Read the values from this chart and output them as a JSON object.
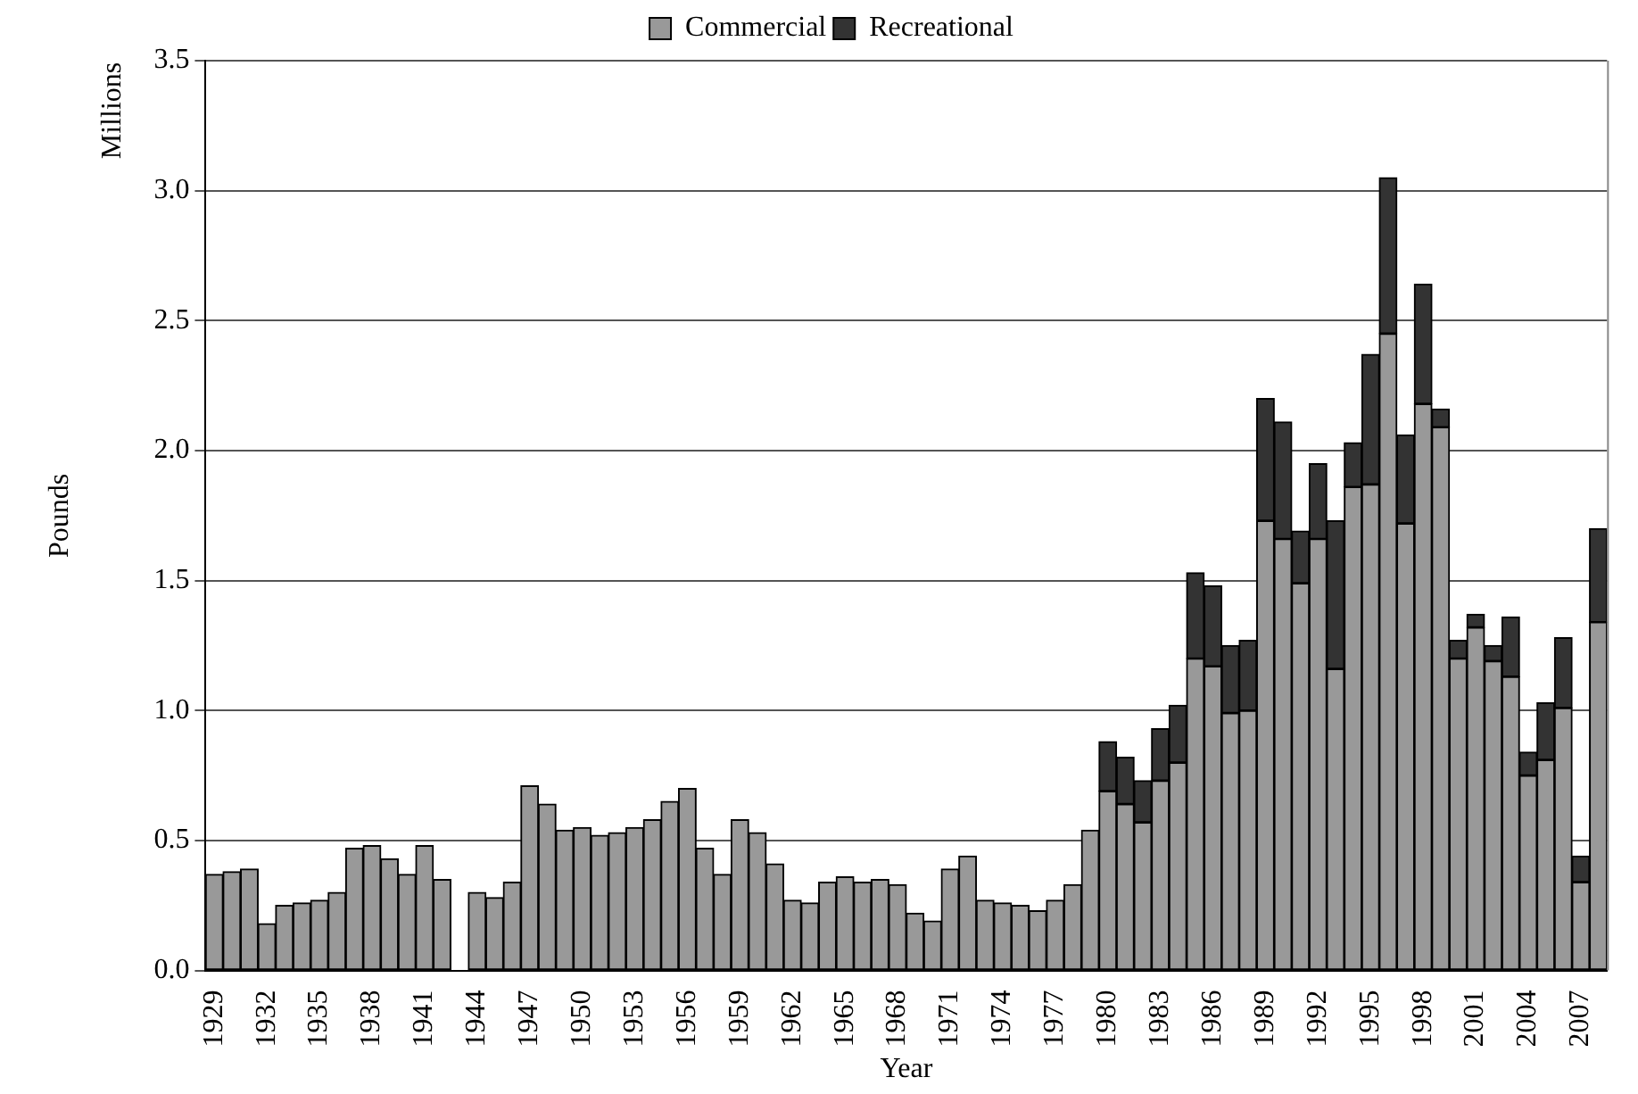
{
  "chart_data": {
    "type": "bar",
    "stacked": true,
    "xlabel": "Year",
    "ylabel": "Pounds",
    "annotations": [
      "Millions"
    ],
    "categories": [
      "1929",
      null,
      null,
      "1932",
      null,
      null,
      "1935",
      null,
      null,
      "1938",
      null,
      null,
      "1941",
      null,
      null,
      "1944",
      null,
      null,
      "1947",
      null,
      null,
      "1950",
      null,
      null,
      "1953",
      null,
      null,
      "1956",
      null,
      null,
      "1959",
      null,
      null,
      "1962",
      null,
      null,
      "1965",
      null,
      null,
      "1968",
      null,
      null,
      "1971",
      null,
      null,
      "1974",
      null,
      null,
      "1977",
      null,
      null,
      "1980",
      null,
      null,
      "1983",
      null,
      null,
      "1986",
      null,
      null,
      "1989",
      null,
      null,
      "1992",
      null,
      null,
      "1995",
      null,
      null,
      "1998",
      null,
      null,
      "2001",
      null,
      null,
      "2004",
      null,
      null,
      "2007",
      null
    ],
    "series": [
      {
        "name": "Commercial",
        "color": "#999999",
        "values": [
          0.37,
          0.38,
          0.39,
          0.18,
          0.25,
          0.26,
          0.27,
          0.3,
          0.47,
          0.48,
          0.43,
          0.37,
          0.48,
          0.35,
          null,
          0.3,
          0.28,
          0.34,
          0.71,
          0.64,
          0.54,
          0.55,
          0.52,
          0.53,
          0.55,
          0.58,
          0.65,
          0.7,
          0.47,
          0.37,
          0.58,
          0.53,
          0.41,
          0.27,
          0.26,
          0.34,
          0.36,
          0.34,
          0.35,
          0.33,
          0.22,
          0.19,
          0.39,
          0.44,
          0.27,
          0.26,
          0.25,
          0.23,
          0.27,
          0.33,
          0.54,
          0.69,
          0.64,
          0.57,
          0.73,
          0.8,
          1.2,
          1.17,
          0.99,
          1.0,
          1.73,
          1.66,
          1.49,
          1.66,
          1.16,
          1.86,
          1.87,
          2.45,
          1.72,
          2.18,
          2.09,
          1.2,
          1.32,
          1.19,
          1.13,
          0.75,
          0.81,
          1.01,
          0.34,
          1.34
        ]
      },
      {
        "name": "Recreational",
        "color": "#333333",
        "values": [
          null,
          null,
          null,
          null,
          null,
          null,
          null,
          null,
          null,
          null,
          null,
          null,
          null,
          null,
          null,
          null,
          null,
          null,
          null,
          null,
          null,
          null,
          null,
          null,
          null,
          null,
          null,
          null,
          null,
          null,
          null,
          null,
          null,
          null,
          null,
          null,
          null,
          null,
          null,
          null,
          null,
          null,
          null,
          null,
          null,
          null,
          null,
          null,
          null,
          null,
          null,
          0.19,
          0.18,
          0.16,
          0.2,
          0.22,
          0.33,
          0.31,
          0.26,
          0.27,
          0.47,
          0.45,
          0.2,
          0.29,
          0.57,
          0.17,
          0.5,
          0.6,
          0.34,
          0.46,
          0.07,
          0.07,
          0.05,
          0.06,
          0.23,
          0.09,
          0.22,
          0.27,
          0.1,
          0.36
        ]
      }
    ],
    "ylim": [
      0,
      3.5
    ],
    "yticks": [
      {
        "value": 0,
        "label": "0.0"
      },
      {
        "value": 0.5,
        "label": "0.5"
      },
      {
        "value": 1,
        "label": "1.0"
      },
      {
        "value": 1.5,
        "label": "1.5"
      },
      {
        "value": 2,
        "label": "2.0"
      },
      {
        "value": 2.5,
        "label": "2.5"
      },
      {
        "value": 3,
        "label": "3.0"
      },
      {
        "value": 3.5,
        "label": "3.5"
      }
    ],
    "grid": "y",
    "legend": "top"
  }
}
